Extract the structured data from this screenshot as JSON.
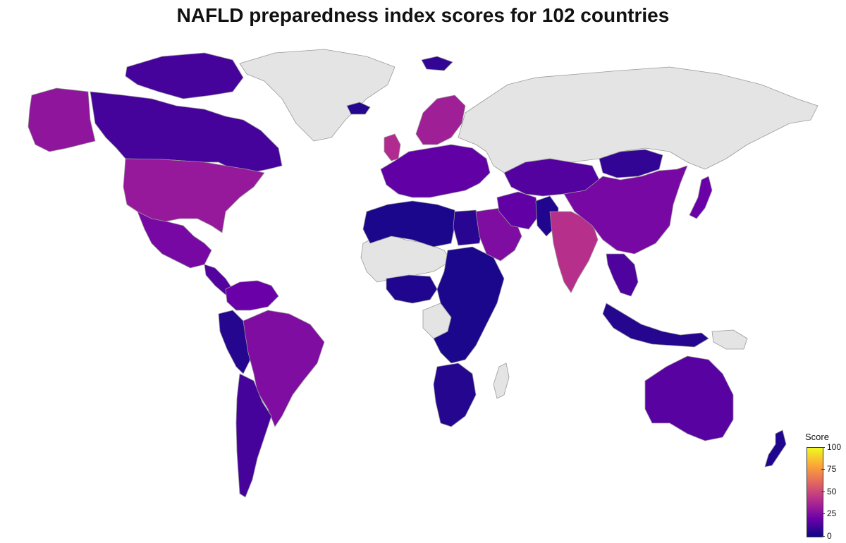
{
  "title": "NAFLD preparedness index scores for 102 countries",
  "legend": {
    "title": "Score",
    "ticks": [
      "100",
      "75",
      "50",
      "25",
      "0"
    ],
    "gradient": [
      "#0d0887",
      "#6a00a8",
      "#b12a90",
      "#e16462",
      "#fca636",
      "#f0f921"
    ],
    "nodata_color": "#e4e4e4",
    "range": [
      0,
      100
    ]
  },
  "map_data": {
    "colored_regions": [
      {
        "name": "canada",
        "score": 12
      },
      {
        "name": "canadian-arctic-islands",
        "score": 12
      },
      {
        "name": "alaska",
        "score": 30
      },
      {
        "name": "united-states",
        "score": 32
      },
      {
        "name": "mexico",
        "score": 24
      },
      {
        "name": "central-america",
        "score": 15
      },
      {
        "name": "colombia-venezuela",
        "score": 20
      },
      {
        "name": "peru-ecuador",
        "score": 5
      },
      {
        "name": "brazil",
        "score": 26
      },
      {
        "name": "argentina-chile",
        "score": 12
      },
      {
        "name": "uk",
        "score": 40
      },
      {
        "name": "iceland",
        "score": 5
      },
      {
        "name": "svalbard",
        "score": 8
      },
      {
        "name": "europe",
        "score": 18
      },
      {
        "name": "scandinavia",
        "score": 35
      },
      {
        "name": "north-africa",
        "score": 3
      },
      {
        "name": "egypt",
        "score": 6
      },
      {
        "name": "west-africa",
        "score": 4
      },
      {
        "name": "central-east-africa",
        "score": 3
      },
      {
        "name": "southern-africa",
        "score": 5
      },
      {
        "name": "arabia",
        "score": 26
      },
      {
        "name": "iran",
        "score": 18
      },
      {
        "name": "pakistan",
        "score": 4
      },
      {
        "name": "india",
        "score": 42
      },
      {
        "name": "kazakhstan",
        "score": 15
      },
      {
        "name": "mongolia",
        "score": 8
      },
      {
        "name": "china",
        "score": 24
      },
      {
        "name": "japan",
        "score": 20
      },
      {
        "name": "southeast-asia",
        "score": 14
      },
      {
        "name": "indonesia",
        "score": 5
      },
      {
        "name": "australia",
        "score": 16
      },
      {
        "name": "new-zealand",
        "score": 4
      }
    ],
    "no_data_regions": [
      "greenland",
      "russia",
      "sahel",
      "central-africa-nodata",
      "madagascar",
      "png"
    ]
  }
}
